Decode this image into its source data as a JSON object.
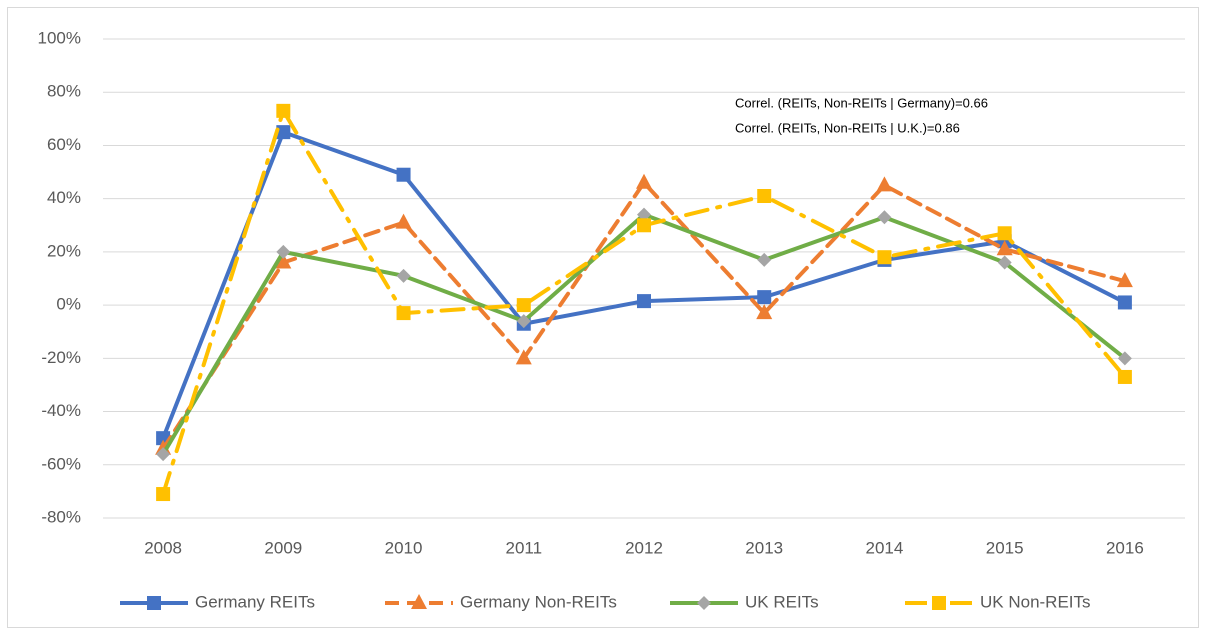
{
  "chart_data": {
    "type": "line",
    "categories": [
      "2008",
      "2009",
      "2010",
      "2011",
      "2012",
      "2013",
      "2014",
      "2015",
      "2016"
    ],
    "annotations": [
      "Correl. (REITs, Non-REITs | Germany)=0.66",
      "Correl. (REITs, Non-REITs | U.K.)=0.86"
    ],
    "ylim": [
      -80,
      100
    ],
    "yticks": [
      {
        "value": -80,
        "label": "-80%"
      },
      {
        "value": -60,
        "label": "-60%"
      },
      {
        "value": -40,
        "label": "-40%"
      },
      {
        "value": -20,
        "label": "-20%"
      },
      {
        "value": 0,
        "label": "0%"
      },
      {
        "value": 20,
        "label": "20%"
      },
      {
        "value": 40,
        "label": "40%"
      },
      {
        "value": 60,
        "label": "60%"
      },
      {
        "value": 80,
        "label": "80%"
      },
      {
        "value": 100,
        "label": "100%"
      }
    ],
    "grid": true,
    "legend": "bottom",
    "series": [
      {
        "name": "Germany REITs",
        "color": "#4472c4",
        "line_style": "solid",
        "marker": "square",
        "values": [
          -50,
          65,
          49,
          -7,
          1.5,
          3,
          17,
          24,
          1
        ]
      },
      {
        "name": "Germany Non-REITs",
        "color": "#ed7d31",
        "line_style": "dash",
        "marker": "triangle",
        "values": [
          -54,
          16,
          31,
          -20,
          46,
          -3,
          45,
          21,
          9
        ]
      },
      {
        "name": "UK REITs",
        "color": "#70ad47",
        "line_style": "solid",
        "marker": "diamond",
        "values": [
          -56,
          20,
          11,
          -6,
          34,
          17,
          33,
          16,
          -20
        ]
      },
      {
        "name": "UK Non-REITs",
        "color": "#ffc000",
        "line_style": "dashdot",
        "marker": "square",
        "values": [
          -71,
          73,
          -3,
          0,
          30,
          41,
          18,
          27,
          -27
        ]
      }
    ]
  }
}
